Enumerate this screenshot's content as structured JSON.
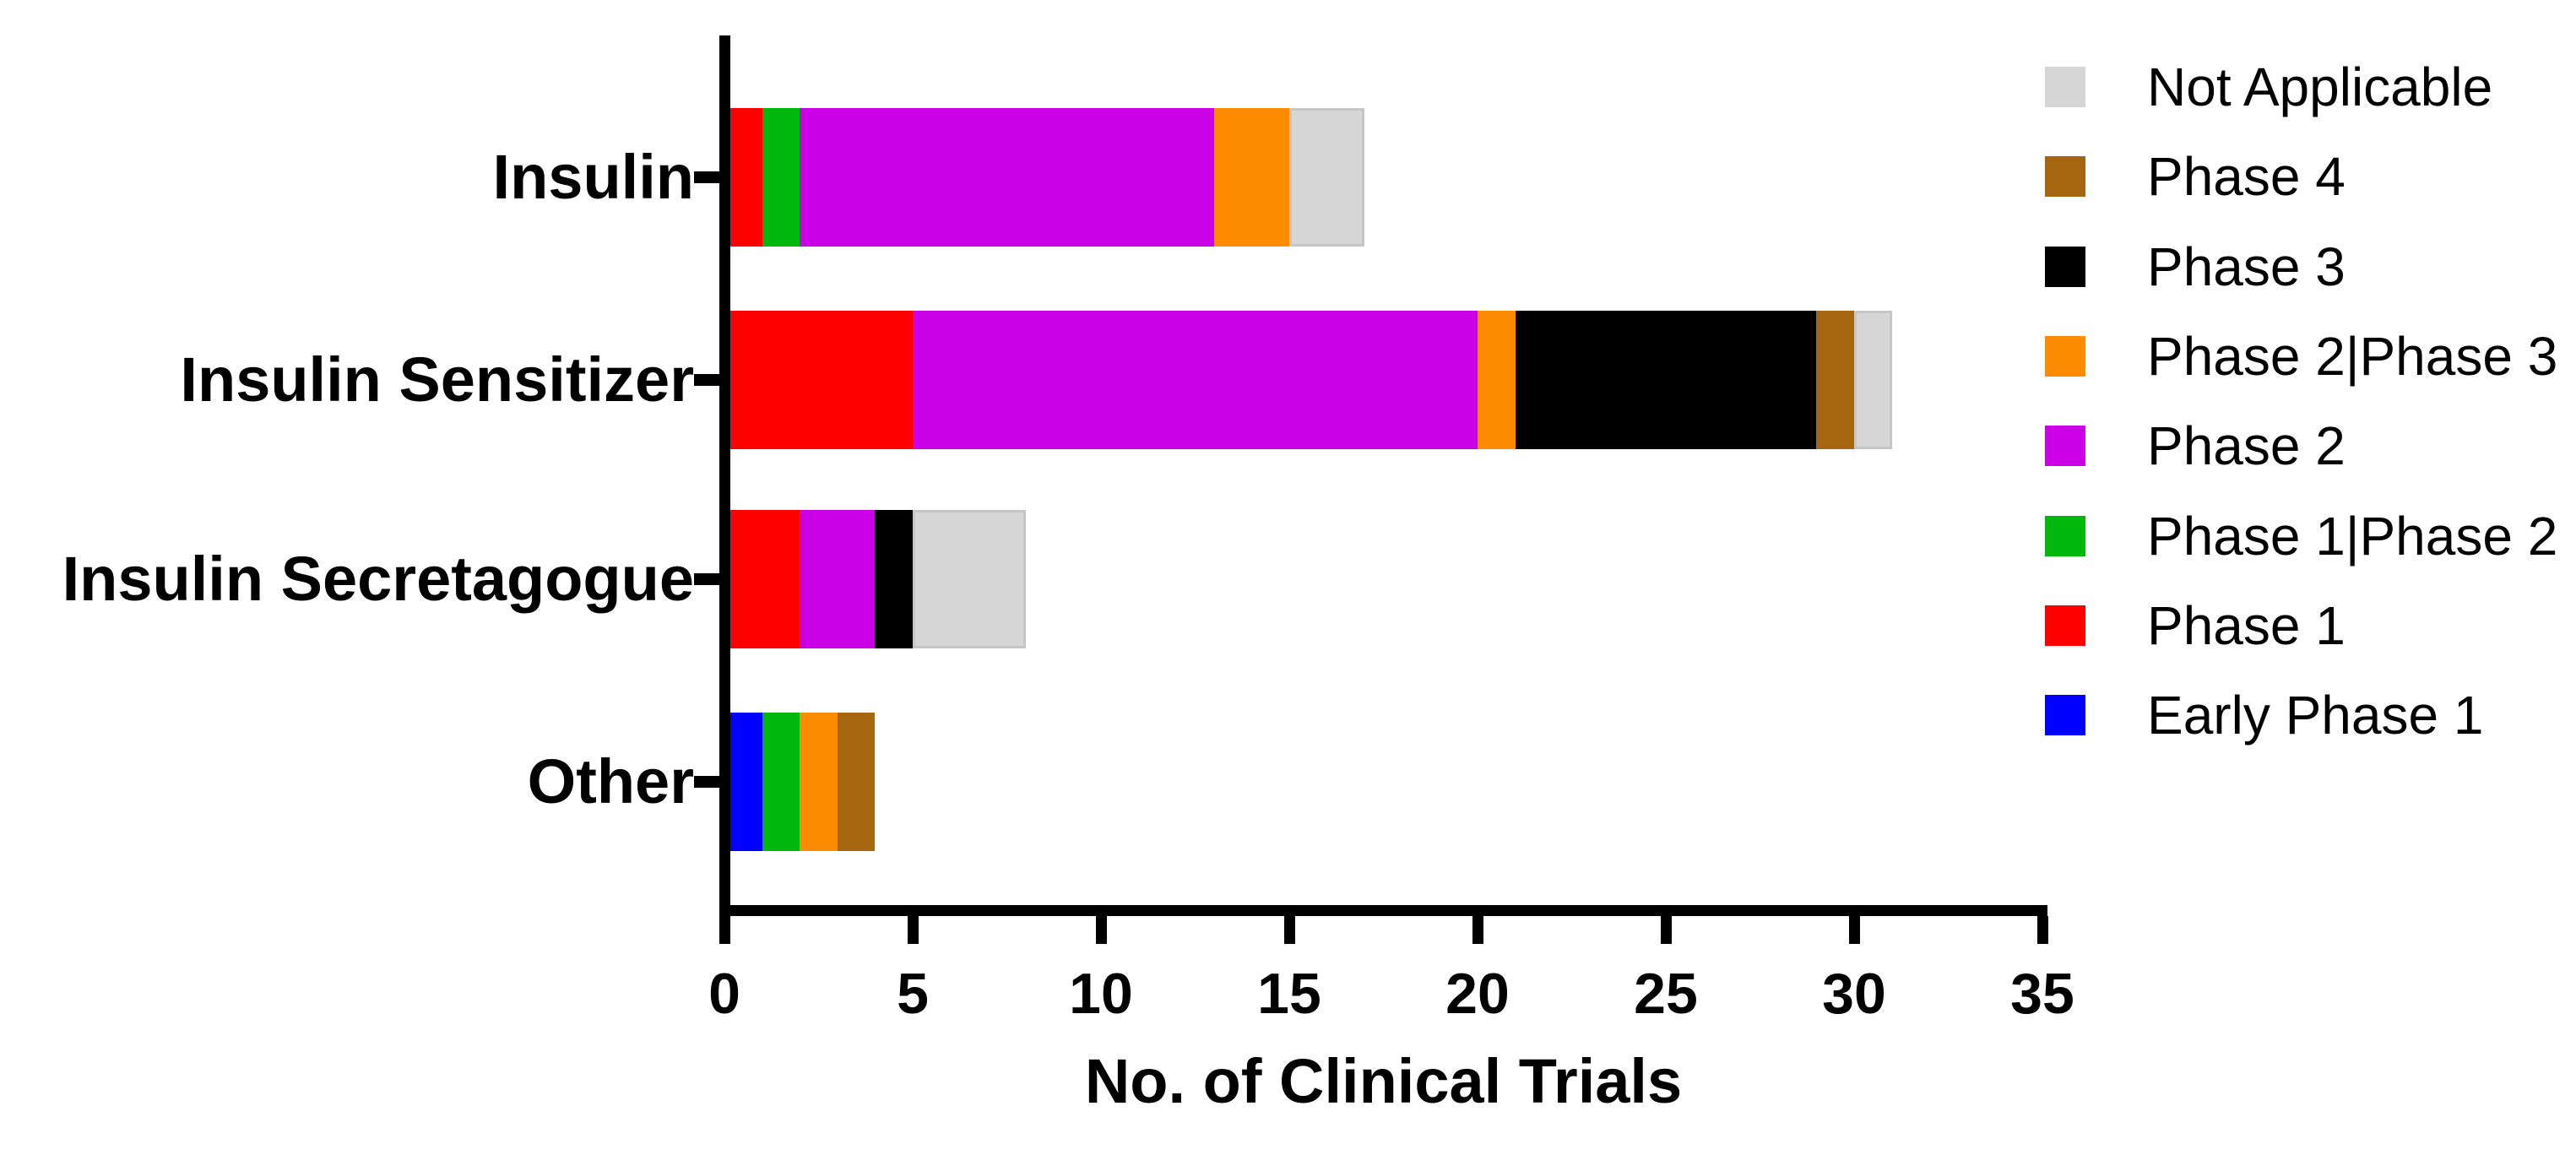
{
  "chart_data": {
    "type": "bar",
    "subtype": "horizontal-stacked",
    "title": "",
    "xlabel": "No. of Clinical Trials",
    "ylabel": "",
    "xlim": [
      0,
      35
    ],
    "x_ticks": [
      0,
      5,
      10,
      15,
      20,
      25,
      30,
      35
    ],
    "grid": false,
    "legend_position": "right",
    "categories": [
      "Insulin",
      "Insulin Sensitizer",
      "Insulin Secretagogue",
      "Other"
    ],
    "series": [
      {
        "name": "Early Phase 1",
        "color": "#0000FF",
        "values": [
          0,
          0,
          0,
          1
        ]
      },
      {
        "name": "Phase 1",
        "color": "#FF0000",
        "values": [
          1,
          5,
          2,
          0
        ]
      },
      {
        "name": "Phase 1|Phase 2",
        "color": "#00B80C",
        "values": [
          1,
          0,
          0,
          1
        ]
      },
      {
        "name": "Phase 2",
        "color": "#CC00E6",
        "values": [
          11,
          15,
          2,
          0
        ]
      },
      {
        "name": "Phase 2|Phase 3",
        "color": "#FF8C00",
        "values": [
          2,
          1,
          0,
          1
        ]
      },
      {
        "name": "Phase 3",
        "color": "#000000",
        "values": [
          0,
          8,
          1,
          0
        ]
      },
      {
        "name": "Phase 4",
        "color": "#A6660F",
        "values": [
          0,
          1,
          0,
          1
        ]
      },
      {
        "name": "Not Applicable",
        "color": "#D6D6D6",
        "values": [
          2,
          1,
          3,
          0
        ]
      }
    ],
    "totals": [
      17,
      31,
      8,
      4
    ],
    "legend": [
      "Not Applicable",
      "Phase 4",
      "Phase 3",
      "Phase 2|Phase 3",
      "Phase 2",
      "Phase 1|Phase 2",
      "Phase 1",
      "Early Phase 1"
    ]
  }
}
